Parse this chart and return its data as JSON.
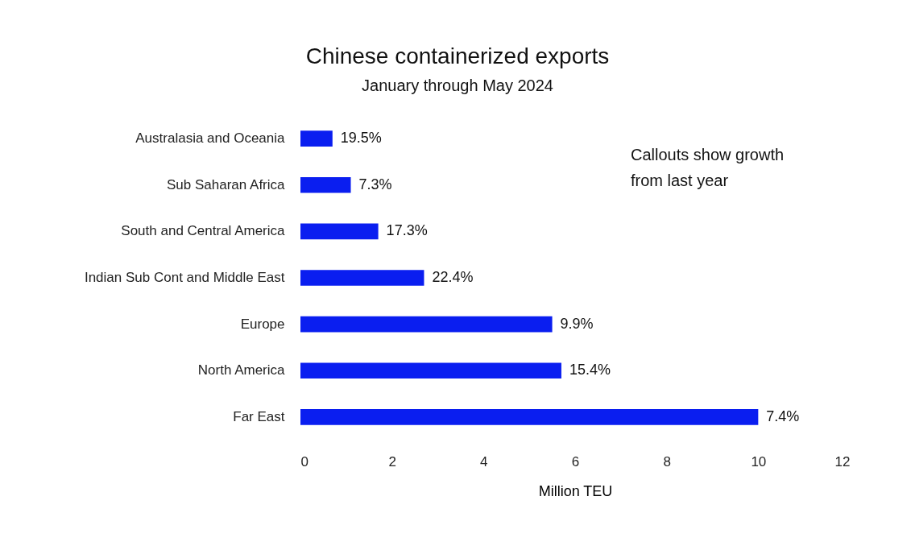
{
  "chart_data": {
    "type": "bar",
    "orientation": "horizontal",
    "title": "Chinese containerized exports",
    "subtitle": "January through May 2024",
    "xlabel": "Million TEU",
    "categories": [
      "Australasia and Oceania",
      "Sub Saharan Africa",
      "South and Central America",
      "Indian Sub Cont and Middle East",
      "Europe",
      "North America",
      "Far East"
    ],
    "values": [
      0.7,
      1.1,
      1.7,
      2.7,
      5.5,
      5.7,
      10.0
    ],
    "color": "#0a1ef0",
    "xlim": [
      0,
      12
    ],
    "xticks": [
      0,
      2,
      4,
      6,
      8,
      10,
      12
    ],
    "annotations": [
      {
        "text": "19.5%",
        "x": 0.7,
        "y": "Australasia and Oceania"
      },
      {
        "text": "7.3%",
        "x": 1.1,
        "y": "Sub Saharan Africa"
      },
      {
        "text": "17.3%",
        "x": 1.7,
        "y": "South and Central America"
      },
      {
        "text": "22.4%",
        "x": 2.7,
        "y": "Indian Sub Cont and Middle East"
      },
      {
        "text": "9.9%",
        "x": 5.5,
        "y": "Europe"
      },
      {
        "text": "15.4%",
        "x": 5.7,
        "y": "North America"
      },
      {
        "text": "7.4%",
        "x": 10.0,
        "y": "Far East"
      },
      "Callouts show growth\nfrom last year"
    ]
  }
}
